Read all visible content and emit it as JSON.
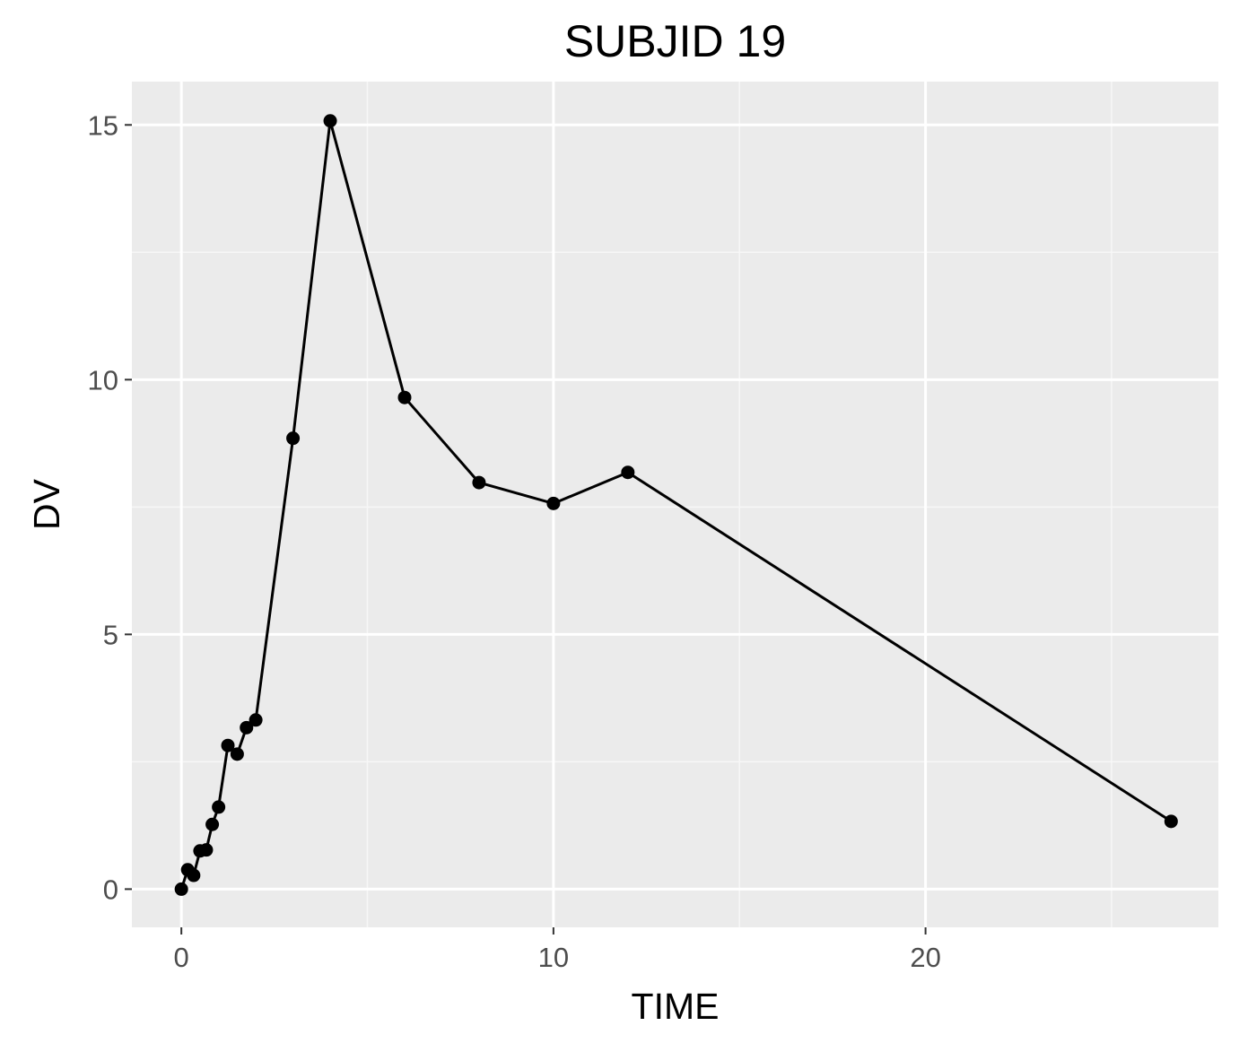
{
  "chart_data": {
    "type": "line",
    "title": "SUBJID 19",
    "xlabel": "TIME",
    "ylabel": "DV",
    "xlim": [
      -1.33,
      27.87
    ],
    "ylim": [
      -0.75,
      15.85
    ],
    "x_ticks": [
      0,
      10,
      20
    ],
    "x_tick_labels": [
      "0",
      "10",
      "20"
    ],
    "x_minor": [
      5,
      15,
      25
    ],
    "y_ticks": [
      0,
      5,
      10,
      15
    ],
    "y_tick_labels": [
      "0",
      "5",
      "10",
      "15"
    ],
    "y_minor": [
      2.5,
      7.5,
      12.5
    ],
    "grid": true,
    "legend": "none",
    "series": [
      {
        "x": [
          0,
          0.17,
          0.33,
          0.5,
          0.67,
          0.83,
          1.0,
          1.25,
          1.5,
          1.75,
          2.0,
          3.0,
          4.0,
          6.0,
          8.0,
          10.0,
          12.0,
          26.6
        ],
        "y": [
          0,
          0.38,
          0.27,
          0.75,
          0.77,
          1.27,
          1.61,
          2.82,
          2.65,
          3.17,
          3.32,
          8.85,
          15.08,
          9.65,
          7.98,
          7.57,
          8.18,
          1.33
        ]
      }
    ],
    "colors": {
      "panel_background": "#ebebeb",
      "grid_major": "#ffffff",
      "grid_minor": "#f7f7f7",
      "line": "#000000",
      "point": "#000000"
    }
  }
}
